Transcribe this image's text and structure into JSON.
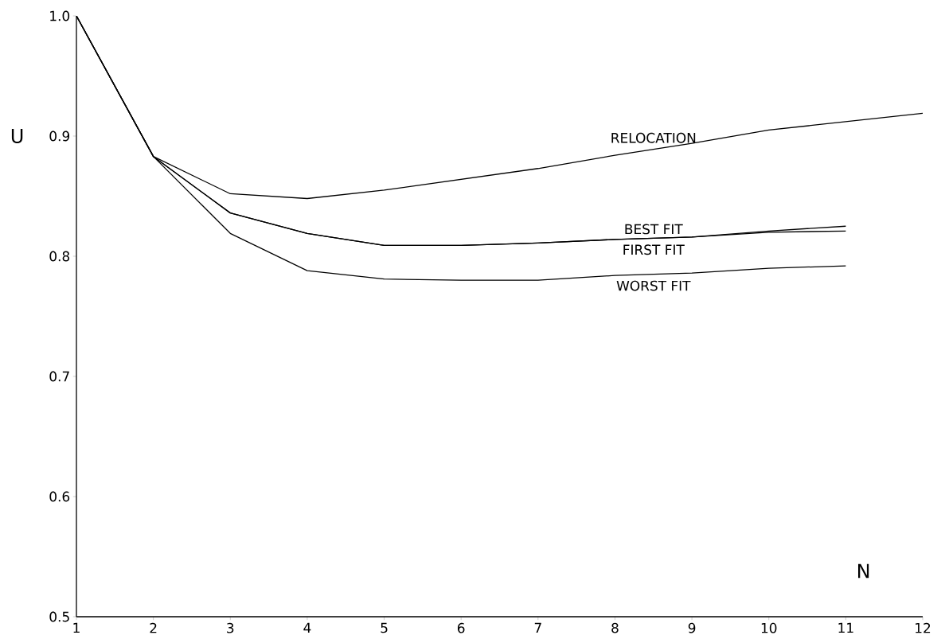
{
  "chart_data": {
    "type": "line",
    "xlabel": "N",
    "ylabel": "U",
    "x": [
      1,
      2,
      3,
      4,
      5,
      6,
      7,
      8,
      9,
      10,
      11
    ],
    "series": [
      {
        "name": "RELOCATION",
        "color": "#000000",
        "x": [
          1,
          2,
          3,
          4,
          5,
          6,
          7,
          8,
          9,
          10,
          11,
          12
        ],
        "values": [
          1.0,
          0.883,
          0.852,
          0.848,
          0.855,
          0.864,
          0.873,
          0.884,
          0.894,
          0.905,
          0.912,
          0.919
        ]
      },
      {
        "name": "BEST FIT",
        "color": "#000000",
        "values": [
          1.0,
          0.883,
          0.836,
          0.819,
          0.809,
          0.809,
          0.811,
          0.814,
          0.816,
          0.821,
          0.825
        ]
      },
      {
        "name": "FIRST FIT",
        "color": "#000000",
        "values": [
          1.0,
          0.883,
          0.836,
          0.819,
          0.809,
          0.809,
          0.811,
          0.814,
          0.816,
          0.82,
          0.821
        ]
      },
      {
        "name": "WORST FIT",
        "color": "#000000",
        "values": [
          1.0,
          0.883,
          0.819,
          0.788,
          0.781,
          0.78,
          0.78,
          0.784,
          0.786,
          0.79,
          0.792
        ]
      }
    ],
    "xlim": [
      1,
      12
    ],
    "ylim": [
      0.5,
      1.0
    ],
    "xticks": [
      1,
      2,
      3,
      4,
      5,
      6,
      7,
      8,
      9,
      10,
      11,
      12
    ],
    "yticks": [
      {
        "value": 0.5,
        "label": "0.5"
      },
      {
        "value": 0.6,
        "label": "0.6"
      },
      {
        "value": 0.7,
        "label": "0.7"
      },
      {
        "value": 0.8,
        "label": "0.8"
      },
      {
        "value": 0.9,
        "label": "0.9"
      },
      {
        "value": 1.0,
        "label": "1.0"
      }
    ],
    "grid": false,
    "legend": false,
    "marker": "none",
    "line_style": "solid"
  }
}
